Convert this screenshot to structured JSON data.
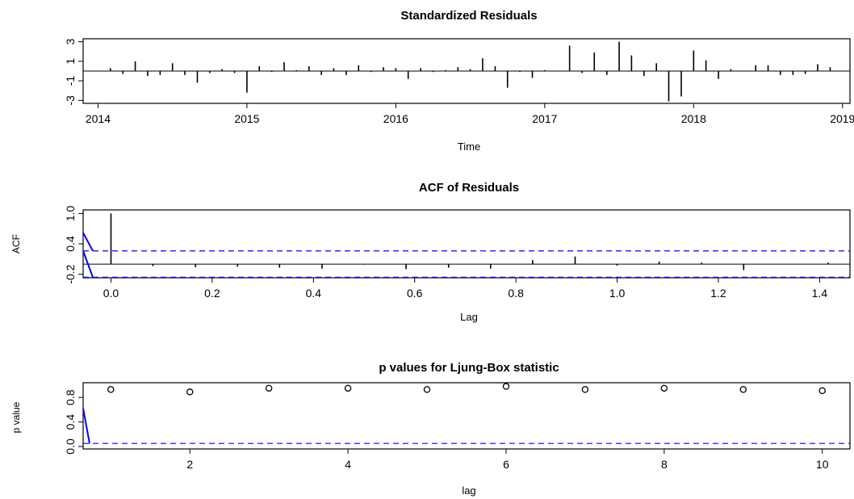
{
  "chart_data": [
    {
      "type": "bar",
      "title": "Standardized Residuals",
      "xlabel": "Time",
      "ylabel": "",
      "xlim": [
        2013.9,
        2019.05
      ],
      "ylim": [
        -3.3,
        3.3
      ],
      "x_ticks": [
        2014,
        2015,
        2016,
        2017,
        2018,
        2019
      ],
      "y_ticks": [
        -3,
        -1,
        1,
        3
      ],
      "x": [
        2014.083,
        2014.167,
        2014.25,
        2014.333,
        2014.417,
        2014.5,
        2014.583,
        2014.667,
        2014.75,
        2014.833,
        2014.917,
        2015.0,
        2015.083,
        2015.167,
        2015.25,
        2015.333,
        2015.417,
        2015.5,
        2015.583,
        2015.667,
        2015.75,
        2015.833,
        2015.917,
        2016.0,
        2016.083,
        2016.167,
        2016.25,
        2016.333,
        2016.417,
        2016.5,
        2016.583,
        2016.667,
        2016.75,
        2016.833,
        2016.917,
        2017.0,
        2017.083,
        2017.167,
        2017.25,
        2017.333,
        2017.417,
        2017.5,
        2017.583,
        2017.667,
        2017.75,
        2017.833,
        2017.917,
        2018.0,
        2018.083,
        2018.167,
        2018.25,
        2018.333,
        2018.417,
        2018.5,
        2018.583,
        2018.667,
        2018.75,
        2018.833,
        2018.917
      ],
      "values": [
        0.3,
        -0.3,
        1.0,
        -0.5,
        -0.4,
        0.8,
        -0.4,
        -1.2,
        -0.2,
        0.2,
        -0.2,
        -2.2,
        0.5,
        -0.1,
        0.9,
        0.1,
        0.5,
        -0.4,
        0.3,
        -0.4,
        0.6,
        -0.1,
        0.4,
        0.3,
        -0.8,
        0.3,
        -0.1,
        0.1,
        0.4,
        0.2,
        1.3,
        0.5,
        -1.7,
        -0.1,
        -0.7,
        0.1,
        0.0,
        2.6,
        -0.2,
        1.9,
        -0.4,
        3.0,
        1.6,
        -0.5,
        0.8,
        -3.1,
        -2.6,
        2.1,
        1.1,
        -0.8,
        0.2,
        0.0,
        0.6,
        0.6,
        -0.4,
        -0.4,
        -0.3,
        0.7,
        0.4
      ]
    },
    {
      "type": "bar",
      "title": "ACF of Residuals",
      "xlabel": "Lag",
      "ylabel": "ACF",
      "xlim": [
        -0.055,
        1.46
      ],
      "ylim": [
        -0.27,
        1.07
      ],
      "x_ticks": [
        "0.0",
        "0.2",
        "0.4",
        "0.6",
        "0.8",
        "1.0",
        "1.2",
        "1.4"
      ],
      "y_ticks": [
        "-0.2",
        "0.4",
        "1.0"
      ],
      "x": [
        0.0,
        0.083,
        0.167,
        0.25,
        0.333,
        0.417,
        0.5,
        0.583,
        0.667,
        0.75,
        0.833,
        0.917,
        1.0,
        1.083,
        1.167,
        1.25,
        1.333,
        1.417
      ],
      "values": [
        1.0,
        -0.04,
        -0.06,
        -0.05,
        -0.07,
        -0.09,
        -0.01,
        -0.1,
        -0.07,
        -0.09,
        0.08,
        0.15,
        -0.03,
        0.05,
        0.03,
        -0.12,
        0.0,
        0.03
      ],
      "ci": 0.26,
      "ci_color": "#0000ff"
    },
    {
      "type": "scatter",
      "title": "p values for Ljung-Box statistic",
      "xlabel": "lag",
      "ylabel": "p value",
      "xlim": [
        0.65,
        10.35
      ],
      "ylim": [
        -0.04,
        1.04
      ],
      "x_ticks": [
        2,
        4,
        6,
        8,
        10
      ],
      "y_ticks": [
        "0.0",
        "0.4",
        "0.8"
      ],
      "x": [
        1,
        2,
        3,
        4,
        5,
        6,
        7,
        8,
        9,
        10
      ],
      "values": [
        0.93,
        0.89,
        0.95,
        0.95,
        0.93,
        0.98,
        0.93,
        0.95,
        0.93,
        0.91
      ],
      "threshold": 0.05,
      "threshold_color": "#0000ff"
    }
  ]
}
